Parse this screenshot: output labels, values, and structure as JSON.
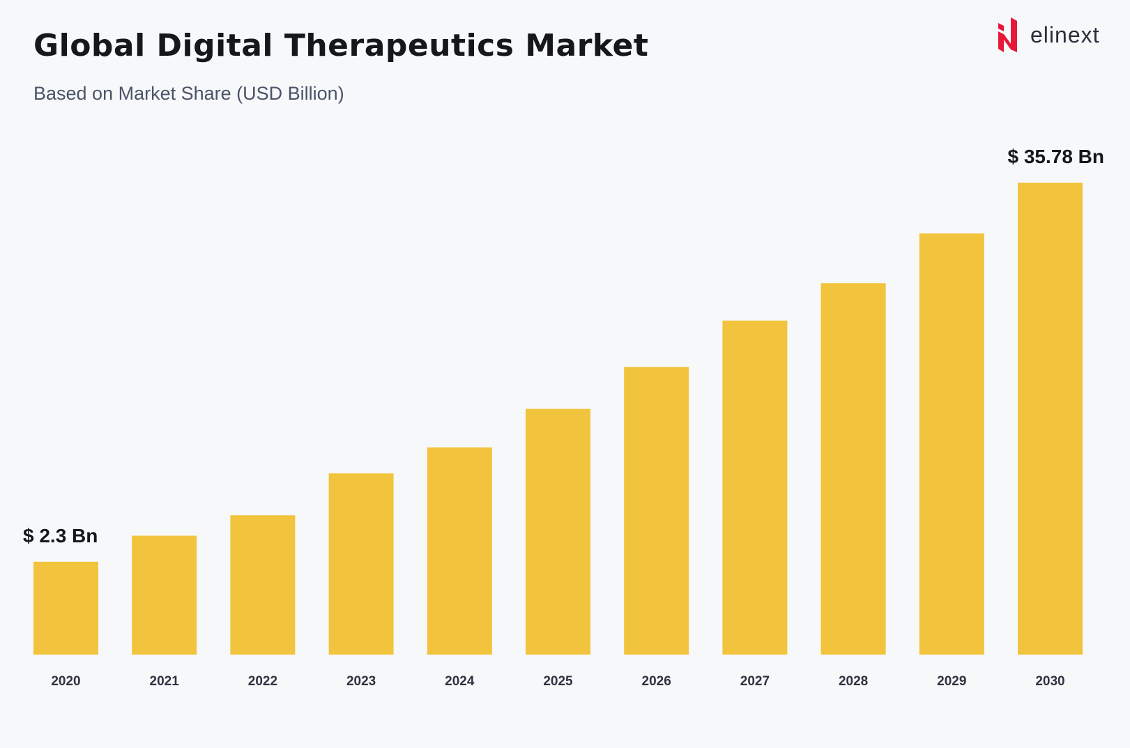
{
  "brand": {
    "name": "elinext",
    "accent": "#e8173a"
  },
  "chart_data": {
    "type": "bar",
    "title": "Global Digital Therapeutics Market",
    "subtitle": "Based on Market Share (USD Billion)",
    "xlabel": "",
    "ylabel": "USD Billion",
    "categories": [
      "2020",
      "2021",
      "2022",
      "2023",
      "2024",
      "2025",
      "2026",
      "2027",
      "2028",
      "2029",
      "2030"
    ],
    "values": [
      2.3,
      4.6,
      6.4,
      10.1,
      12.4,
      15.8,
      19.5,
      23.6,
      26.9,
      31.3,
      35.78
    ],
    "ylim": [
      -5.9,
      35.78
    ],
    "grid": false,
    "bar_color": "#f2c43d",
    "annotations": [
      {
        "category": "2020",
        "text": "$ 2.3 Bn"
      },
      {
        "category": "2030",
        "text": "$ 35.78 Bn"
      }
    ]
  }
}
